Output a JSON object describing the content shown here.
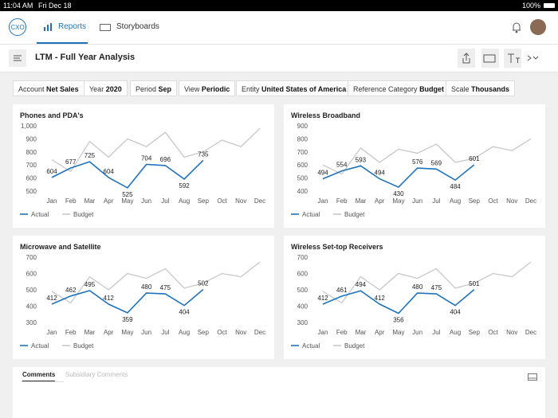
{
  "status_bar": {
    "time": "11:04 AM",
    "date": "Fri Dec 18",
    "battery": "100%"
  },
  "nav": {
    "logo": "CXO",
    "tabs": [
      "Reports",
      "Storyboards"
    ]
  },
  "toolbar": {
    "title": "LTM - Full Year Analysis"
  },
  "filters": [
    {
      "label": "Account",
      "value": "Net Sales"
    },
    {
      "label": "Year",
      "value": "2020"
    },
    {
      "label": "Period",
      "value": "Sep"
    },
    {
      "label": "View",
      "value": "Periodic"
    },
    {
      "label": "Entity",
      "value": "United States of America"
    },
    {
      "label": "Reference Category",
      "value": "Budget"
    },
    {
      "label": "Scale",
      "value": "Thousands"
    }
  ],
  "chart_data": [
    {
      "type": "line",
      "title": "Phones and PDA's",
      "categories": [
        "Jan",
        "Feb",
        "Mar",
        "Apr",
        "May",
        "Jun",
        "Jul",
        "Aug",
        "Sep",
        "Oct",
        "Nov",
        "Dec"
      ],
      "series": [
        {
          "name": "Actual",
          "color": "#1f73bd",
          "values": [
            604,
            677,
            725,
            604,
            525,
            704,
            696,
            592,
            735,
            null,
            null,
            null
          ]
        },
        {
          "name": "Budget",
          "color": "#c8c8c8",
          "values": [
            740,
            650,
            880,
            760,
            900,
            840,
            950,
            760,
            800,
            890,
            840,
            980
          ]
        }
      ],
      "ylim": [
        500,
        1000
      ],
      "yticks": [
        500,
        600,
        700,
        800,
        900,
        {
          "value": 1000,
          "label": "1,000"
        }
      ],
      "grid": false,
      "data_labels": "Actual"
    },
    {
      "type": "line",
      "title": "Wireless Broadband",
      "categories": [
        "Jan",
        "Feb",
        "Mar",
        "Apr",
        "May",
        "Jun",
        "Jul",
        "Aug",
        "Sep",
        "Oct",
        "Nov",
        "Dec"
      ],
      "series": [
        {
          "name": "Actual",
          "color": "#1f73bd",
          "values": [
            494,
            554,
            593,
            494,
            430,
            576,
            569,
            484,
            601,
            null,
            null,
            null
          ]
        },
        {
          "name": "Budget",
          "color": "#c8c8c8",
          "values": [
            600,
            530,
            730,
            620,
            720,
            690,
            760,
            620,
            650,
            740,
            710,
            800
          ]
        }
      ],
      "ylim": [
        400,
        900
      ],
      "yticks": [
        400,
        500,
        600,
        700,
        800,
        900
      ],
      "grid": false,
      "data_labels": "Actual"
    },
    {
      "type": "line",
      "title": "Microwave and Satellite",
      "categories": [
        "Jan",
        "Feb",
        "Mar",
        "Apr",
        "May",
        "Jun",
        "Jul",
        "Aug",
        "Sep",
        "Oct",
        "Nov",
        "Dec"
      ],
      "series": [
        {
          "name": "Actual",
          "color": "#1f73bd",
          "values": [
            412,
            462,
            495,
            412,
            359,
            480,
            475,
            404,
            502,
            null,
            null,
            null
          ]
        },
        {
          "name": "Budget",
          "color": "#c8c8c8",
          "values": [
            490,
            420,
            580,
            500,
            600,
            570,
            630,
            510,
            540,
            600,
            580,
            670
          ]
        }
      ],
      "ylim": [
        300,
        700
      ],
      "yticks": [
        300,
        400,
        500,
        600,
        700
      ],
      "grid": false,
      "data_labels": "Actual"
    },
    {
      "type": "line",
      "title": "Wireless Set-top Receivers",
      "categories": [
        "Jan",
        "Feb",
        "Mar",
        "Apr",
        "May",
        "Jun",
        "Jul",
        "Aug",
        "Sep",
        "Oct",
        "Nov",
        "Dec"
      ],
      "series": [
        {
          "name": "Actual",
          "color": "#1f73bd",
          "values": [
            412,
            461,
            494,
            412,
            356,
            480,
            475,
            404,
            501,
            null,
            null,
            null
          ]
        },
        {
          "name": "Budget",
          "color": "#c8c8c8",
          "values": [
            490,
            420,
            580,
            500,
            600,
            570,
            630,
            510,
            540,
            600,
            580,
            670
          ]
        }
      ],
      "ylim": [
        300,
        700
      ],
      "yticks": [
        300,
        400,
        500,
        600,
        700
      ],
      "grid": false,
      "data_labels": "Actual"
    }
  ],
  "comments": {
    "tabs": [
      "Comments",
      "Subsidiary Comments"
    ]
  }
}
